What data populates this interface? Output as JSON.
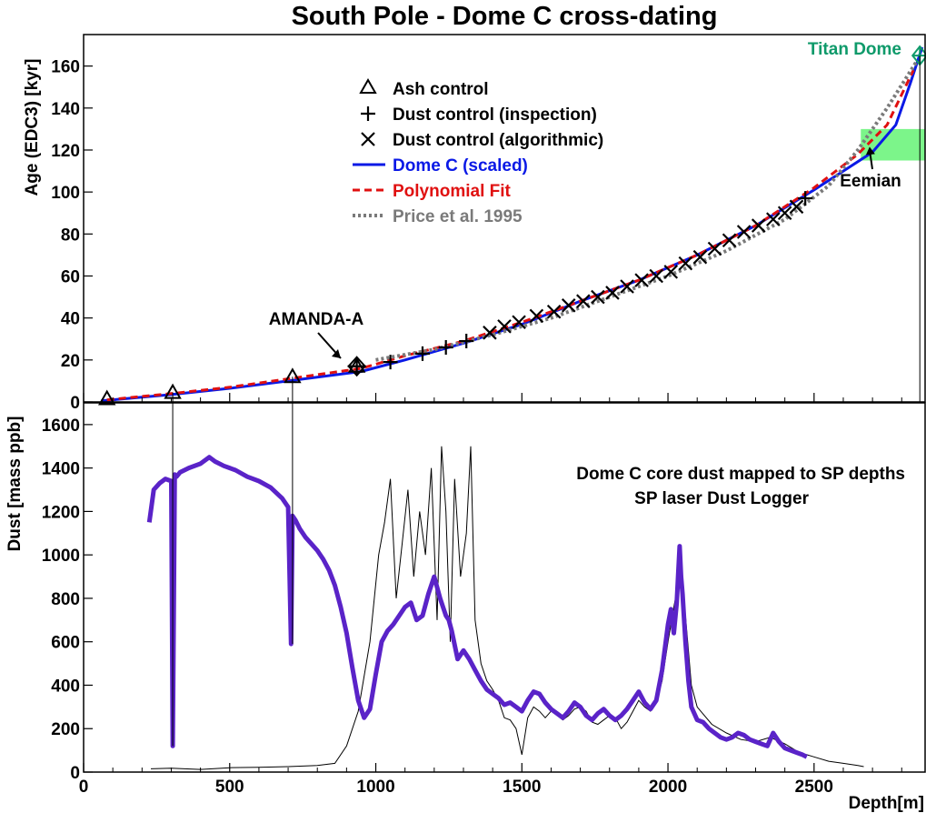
{
  "title": "South Pole - Dome C cross-dating",
  "colors": {
    "dome_c": "#0a19e6",
    "poly": "#e01010",
    "price": "#7a7a7a",
    "titan": "#0e9a6a",
    "eemian_band": "#7cf58a",
    "logger": "#5a23c8",
    "mapped": "#000000"
  },
  "chart_data": [
    {
      "type": "line",
      "title": "South Pole - Dome C cross-dating",
      "xlabel": "",
      "ylabel": "Age (EDC3) [kyr]",
      "xlim": [
        0,
        2880
      ],
      "ylim": [
        0,
        175
      ],
      "x_ticks": [
        "0",
        "500",
        "1000",
        "1500",
        "2000",
        "2500"
      ],
      "y_ticks": [
        "0",
        "20",
        "40",
        "60",
        "80",
        "100",
        "120",
        "140",
        "160"
      ],
      "grid": false,
      "legend_position": "upper-left",
      "legend": [
        {
          "label": "Ash control",
          "marker": "triangle"
        },
        {
          "label": "Dust control (inspection)",
          "marker": "plus"
        },
        {
          "label": "Dust control (algorithmic)",
          "marker": "cross"
        },
        {
          "label": "Dome C (scaled)",
          "style": "solid",
          "color": "#0a19e6"
        },
        {
          "label": "Polynomial Fit",
          "style": "dashed",
          "color": "#e01010"
        },
        {
          "label": "Price et al. 1995",
          "style": "dotted",
          "color": "#7a7a7a"
        }
      ],
      "series": [
        {
          "name": "Dome C (scaled)",
          "x": [
            60,
            300,
            500,
            700,
            950,
            1100,
            1300,
            1500,
            1700,
            1900,
            2100,
            2300,
            2500,
            2600,
            2700,
            2780,
            2830,
            2870
          ],
          "y": [
            0.5,
            3.5,
            6.5,
            10,
            14.5,
            20,
            28,
            37,
            48,
            58,
            70,
            84,
            101,
            110,
            119,
            132,
            152,
            169
          ]
        },
        {
          "name": "Polynomial Fit",
          "x": [
            80,
            300,
            500,
            700,
            950,
            1100,
            1300,
            1500,
            1700,
            1900,
            2100,
            2300,
            2500,
            2650,
            2750,
            2840
          ],
          "y": [
            1,
            4,
            7,
            11,
            16,
            22,
            29,
            38,
            48,
            58,
            70,
            84,
            102,
            118,
            132,
            158
          ]
        },
        {
          "name": "Price et al. 1995",
          "x": [
            1000,
            1200,
            1400,
            1600,
            1800,
            2000,
            2200,
            2400,
            2550,
            2650,
            2750,
            2850
          ],
          "y": [
            20,
            25,
            32,
            40,
            50,
            60,
            72,
            87,
            103,
            120,
            140,
            162
          ]
        }
      ],
      "markers": {
        "ash": [
          {
            "x": 80,
            "y": 1.5
          },
          {
            "x": 305,
            "y": 4.5
          },
          {
            "x": 715,
            "y": 12
          },
          {
            "x": 935,
            "y": 17
          }
        ],
        "dust_inspection": [
          {
            "x": 1050,
            "y": 19
          },
          {
            "x": 1160,
            "y": 23
          },
          {
            "x": 1240,
            "y": 26
          },
          {
            "x": 1310,
            "y": 29
          },
          {
            "x": 2470,
            "y": 97
          }
        ],
        "dust_algorithmic": [
          {
            "x": 1390,
            "y": 33
          },
          {
            "x": 1440,
            "y": 36
          },
          {
            "x": 1490,
            "y": 38
          },
          {
            "x": 1550,
            "y": 41
          },
          {
            "x": 1610,
            "y": 43
          },
          {
            "x": 1660,
            "y": 46
          },
          {
            "x": 1710,
            "y": 48
          },
          {
            "x": 1760,
            "y": 50
          },
          {
            "x": 1810,
            "y": 52
          },
          {
            "x": 1860,
            "y": 55
          },
          {
            "x": 1910,
            "y": 58
          },
          {
            "x": 1960,
            "y": 60
          },
          {
            "x": 2010,
            "y": 62
          },
          {
            "x": 2060,
            "y": 66
          },
          {
            "x": 2110,
            "y": 69
          },
          {
            "x": 2160,
            "y": 73
          },
          {
            "x": 2210,
            "y": 77
          },
          {
            "x": 2260,
            "y": 81
          },
          {
            "x": 2310,
            "y": 84
          },
          {
            "x": 2360,
            "y": 87
          },
          {
            "x": 2400,
            "y": 90
          },
          {
            "x": 2440,
            "y": 93
          }
        ],
        "titan_dome": {
          "x": 2862,
          "y": 165
        }
      },
      "eemian_band": {
        "x": [
          2660,
          2880
        ],
        "y": [
          115,
          130
        ]
      },
      "annotations": [
        {
          "text": "AMANDA-A",
          "target": {
            "x": 930,
            "y": 18
          }
        },
        {
          "text": "Eemian",
          "target": {
            "x": 2690,
            "y": 122
          }
        },
        {
          "text": "Titan Dome"
        }
      ]
    },
    {
      "type": "line",
      "xlabel": "Depth[m]",
      "ylabel": "Dust [mass ppb]",
      "xlim": [
        0,
        2880
      ],
      "ylim": [
        0,
        1700
      ],
      "x_ticks": [
        "0",
        "500",
        "1000",
        "1500",
        "2000",
        "2500"
      ],
      "y_ticks": [
        "0",
        "200",
        "400",
        "600",
        "800",
        "1000",
        "1200",
        "1400",
        "1600"
      ],
      "grid": false,
      "legend_position": "upper-right",
      "legend": [
        {
          "label": "Dome C core dust mapped to SP depths",
          "color": "#000000"
        },
        {
          "label": "SP laser Dust Logger",
          "color": "#5a23c8"
        }
      ],
      "series": [
        {
          "name": "SP laser Dust Logger",
          "x": [
            225,
            240,
            260,
            280,
            300,
            305,
            312,
            318,
            330,
            360,
            400,
            430,
            450,
            480,
            520,
            560,
            600,
            640,
            680,
            700,
            710,
            715,
            725,
            740,
            760,
            780,
            800,
            820,
            840,
            860,
            880,
            900,
            920,
            940,
            960,
            980,
            1000,
            1020,
            1040,
            1060,
            1080,
            1100,
            1120,
            1140,
            1160,
            1180,
            1200,
            1220,
            1230,
            1240,
            1250,
            1260,
            1280,
            1300,
            1320,
            1340,
            1360,
            1380,
            1400,
            1420,
            1440,
            1460,
            1480,
            1500,
            1520,
            1540,
            1560,
            1580,
            1600,
            1620,
            1640,
            1660,
            1680,
            1700,
            1720,
            1740,
            1760,
            1780,
            1800,
            1820,
            1840,
            1860,
            1880,
            1900,
            1920,
            1940,
            1960,
            1980,
            2000,
            2010,
            2020,
            2030,
            2040,
            2045,
            2050,
            2060,
            2070,
            2080,
            2090,
            2100,
            2120,
            2140,
            2160,
            2180,
            2200,
            2220,
            2240,
            2260,
            2280,
            2300,
            2320,
            2340,
            2360,
            2380,
            2400,
            2420,
            2440,
            2460,
            2475
          ],
          "y": [
            1150,
            1300,
            1330,
            1350,
            1340,
            120,
            1370,
            1360,
            1380,
            1400,
            1420,
            1450,
            1430,
            1410,
            1390,
            1360,
            1340,
            1310,
            1260,
            1220,
            590,
            1180,
            1160,
            1120,
            1080,
            1050,
            1020,
            980,
            930,
            860,
            760,
            640,
            480,
            330,
            250,
            290,
            450,
            600,
            650,
            680,
            720,
            760,
            780,
            700,
            720,
            820,
            900,
            800,
            760,
            720,
            700,
            650,
            520,
            560,
            520,
            470,
            420,
            380,
            360,
            340,
            310,
            320,
            300,
            280,
            330,
            370,
            360,
            320,
            290,
            270,
            250,
            280,
            320,
            300,
            260,
            240,
            270,
            290,
            260,
            240,
            260,
            290,
            330,
            370,
            320,
            290,
            330,
            470,
            680,
            750,
            640,
            780,
            1040,
            900,
            820,
            600,
            420,
            300,
            270,
            240,
            230,
            200,
            180,
            160,
            150,
            160,
            180,
            170,
            150,
            140,
            130,
            120,
            180,
            140,
            110,
            100,
            90,
            80,
            70
          ]
        },
        {
          "name": "Dome C core dust mapped to SP depths",
          "x": [
            230,
            300,
            400,
            500,
            600,
            700,
            800,
            860,
            900,
            940,
            980,
            1010,
            1030,
            1050,
            1070,
            1090,
            1110,
            1130,
            1150,
            1170,
            1190,
            1210,
            1225,
            1240,
            1255,
            1270,
            1290,
            1310,
            1325,
            1340,
            1360,
            1380,
            1400,
            1420,
            1440,
            1460,
            1480,
            1500,
            1520,
            1540,
            1560,
            1580,
            1600,
            1620,
            1640,
            1660,
            1680,
            1700,
            1720,
            1740,
            1760,
            1780,
            1800,
            1820,
            1840,
            1860,
            1880,
            1900,
            1920,
            1940,
            1960,
            1980,
            2000,
            2020,
            2040,
            2060,
            2080,
            2100,
            2150,
            2200,
            2250,
            2300,
            2350,
            2400,
            2450,
            2500,
            2550,
            2600,
            2650,
            2670
          ],
          "y": [
            15,
            18,
            12,
            20,
            22,
            25,
            30,
            40,
            120,
            280,
            600,
            1000,
            1150,
            1350,
            800,
            1050,
            1300,
            900,
            1200,
            1000,
            1400,
            700,
            1500,
            1200,
            600,
            1350,
            900,
            1100,
            1500,
            700,
            500,
            420,
            380,
            330,
            250,
            240,
            200,
            80,
            250,
            300,
            280,
            250,
            280,
            270,
            240,
            260,
            290,
            300,
            280,
            230,
            220,
            240,
            260,
            250,
            200,
            230,
            280,
            330,
            300,
            280,
            320,
            420,
            600,
            760,
            900,
            720,
            400,
            300,
            220,
            180,
            150,
            140,
            160,
            130,
            90,
            70,
            50,
            40,
            30,
            25
          ]
        }
      ]
    }
  ]
}
